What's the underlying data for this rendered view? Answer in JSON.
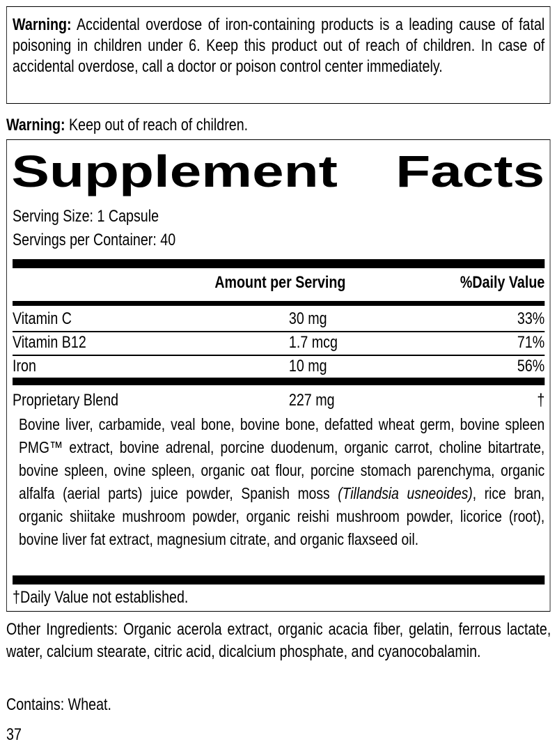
{
  "warning_box": {
    "label": "Warning:",
    "text": " Accidental overdose of iron-containing products is a leading cause of fatal poisoning in children under 6. Keep this product out of reach of children. In case of accidental overdose, call a doctor or poison control center immediately."
  },
  "warning2": {
    "label": "Warning:",
    "text": " Keep out of reach of children."
  },
  "facts": {
    "title_word1": "Supplement",
    "title_word2": "Facts",
    "serving_size": "Serving Size: 1 Capsule",
    "servings_per_container": "Servings per Container: 40",
    "header": {
      "amount": "Amount per Serving",
      "dv": "%Daily Value"
    },
    "rows": [
      {
        "name": "Vitamin C",
        "amount": "30 mg",
        "dv": "33%"
      },
      {
        "name": "Vitamin B12",
        "amount": "1.7 mcg",
        "dv": "71%"
      },
      {
        "name": "Iron",
        "amount": "10 mg",
        "dv": "56%"
      }
    ],
    "blend": {
      "name": "Proprietary Blend",
      "amount": "227 mg",
      "dv": "†",
      "ingredients_before": "Bovine liver, carbamide, veal bone, bovine bone, defatted wheat germ, bovine spleen PMG™ extract, bovine adrenal, porcine duodenum, organic carrot, choline bitartrate, bovine spleen, ovine spleen, organic oat flour, porcine stomach parenchyma, organic alfalfa (aerial parts) juice powder, Spanish moss ",
      "ingredients_italic": "(Tillandsia usneoides)",
      "ingredients_after": ", rice bran, organic shiitake mushroom powder, organic reishi mushroom powder, licorice (root), bovine liver fat extract, magnesium citrate, and organic flaxseed oil."
    },
    "footnote": "†Daily Value not established."
  },
  "other_ingredients": "Other Ingredients: Organic acerola extract, organic acacia fiber, gelatin, ferrous lactate, water, calcium stearate, citric acid, dicalcium phosphate, and cyanocobalamin.",
  "contains": "Contains: Wheat.",
  "page_number": "37"
}
